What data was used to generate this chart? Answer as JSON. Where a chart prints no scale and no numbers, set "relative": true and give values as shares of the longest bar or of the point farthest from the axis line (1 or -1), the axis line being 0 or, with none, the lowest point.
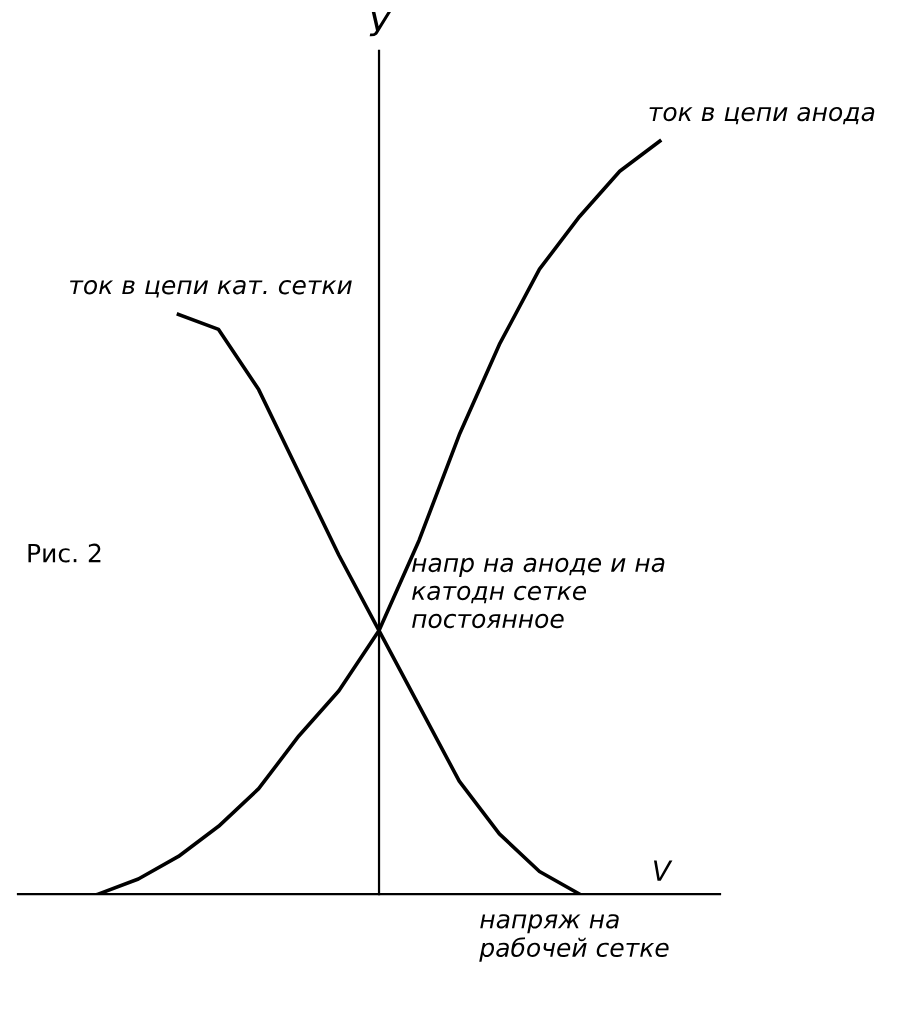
{
  "chart_data": {
    "type": "line",
    "relative": true,
    "marker": "none",
    "line_style": "solid",
    "ylabel": "У",
    "xlabel": "V",
    "categories": [
      null,
      null,
      null,
      null,
      null,
      null,
      null,
      null,
      null,
      null,
      null,
      null,
      null,
      null,
      null,
      null,
      null
    ],
    "series": [
      {
        "name": "ток в цепи анода",
        "color": "#000000",
        "values": [
          null,
          0.0,
          0.02,
          0.05,
          0.09,
          0.14,
          0.21,
          0.27,
          0.35,
          0.47,
          0.61,
          0.73,
          0.83,
          0.9,
          0.96,
          1.0,
          null
        ]
      },
      {
        "name": "ток в цепи кат. сетки",
        "color": "#000000",
        "values": [
          null,
          null,
          null,
          0.77,
          0.75,
          0.67,
          0.56,
          0.45,
          0.35,
          0.25,
          0.15,
          0.08,
          0.03,
          0.0,
          null,
          null,
          null
        ]
      }
    ],
    "annotations": [
      "Рис. 2",
      "напр на аноде и на\nкатодн сетке\nпостоянное",
      "напряж на\nрабочей сетке"
    ]
  }
}
